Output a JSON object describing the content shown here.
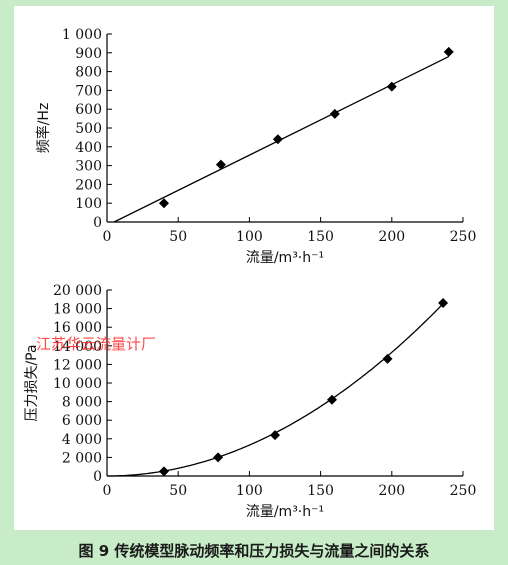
{
  "caption": "图 9   传统模型脉动频率和压力损失与流量之间的关系",
  "watermark": "江苏华云流量计厂",
  "chart_data": [
    {
      "type": "scatter",
      "xlabel": "流量/m³·h⁻¹",
      "ylabel": "频率/Hz",
      "xlim": [
        0,
        250
      ],
      "ylim": [
        0,
        1000
      ],
      "xticks": [
        0,
        50,
        100,
        150,
        200,
        250
      ],
      "yticks": [
        0,
        100,
        200,
        300,
        400,
        500,
        600,
        700,
        800,
        900,
        1000
      ],
      "xtick_labels": [
        "0",
        "50",
        "100",
        "150",
        "200",
        "250"
      ],
      "ytick_labels": [
        "0",
        "100",
        "200",
        "300",
        "400",
        "500",
        "600",
        "700",
        "800",
        "900",
        "1 000"
      ],
      "points": [
        {
          "x": 40,
          "y": 100
        },
        {
          "x": 80,
          "y": 305
        },
        {
          "x": 120,
          "y": 440
        },
        {
          "x": 160,
          "y": 575
        },
        {
          "x": 200,
          "y": 720
        },
        {
          "x": 240,
          "y": 905
        }
      ],
      "fit_line": {
        "x": [
          5,
          240
        ],
        "y": [
          0,
          880
        ]
      },
      "grid": false
    },
    {
      "type": "scatter",
      "xlabel": "流量/m³·h⁻¹",
      "ylabel": "压力损失/Pa",
      "xlim": [
        0,
        250
      ],
      "ylim": [
        0,
        20000
      ],
      "xticks": [
        0,
        50,
        100,
        150,
        200,
        250
      ],
      "yticks": [
        0,
        2000,
        4000,
        6000,
        8000,
        10000,
        12000,
        14000,
        16000,
        18000,
        20000
      ],
      "xtick_labels": [
        "0",
        "50",
        "100",
        "150",
        "200",
        "250"
      ],
      "ytick_labels": [
        "0",
        "2 000",
        "4 000",
        "6 000",
        "8 000",
        "10 000",
        "12 000",
        "14 000",
        "16 000",
        "18 000",
        "20 000"
      ],
      "points": [
        {
          "x": 40,
          "y": 500
        },
        {
          "x": 78,
          "y": 2000
        },
        {
          "x": 118,
          "y": 4400
        },
        {
          "x": 158,
          "y": 8200
        },
        {
          "x": 197,
          "y": 12600
        },
        {
          "x": 236,
          "y": 18600
        }
      ],
      "fit_curve_coef": 0.3324,
      "grid": false
    }
  ]
}
